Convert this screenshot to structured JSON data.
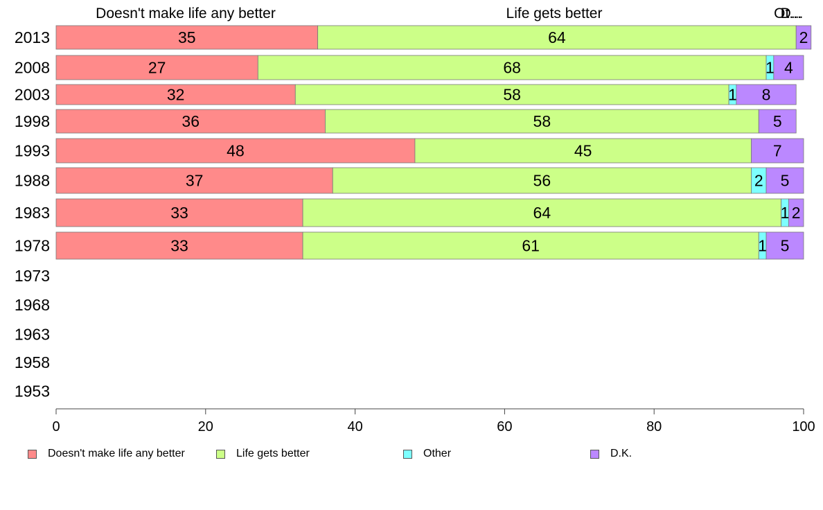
{
  "chart_data": {
    "type": "bar",
    "orientation": "horizontal",
    "stacked": true,
    "title": "",
    "xlabel": "",
    "ylabel": "",
    "xlim": [
      0,
      100
    ],
    "x_ticks": [
      "0",
      "20",
      "40",
      "60",
      "80",
      "100"
    ],
    "grid": false,
    "legend_placement": "bottom",
    "categories": [
      "2013",
      "2008",
      "2003",
      "1998",
      "1993",
      "1988",
      "1983",
      "1978",
      "1973",
      "1968",
      "1963",
      "1958",
      "1953"
    ],
    "series": [
      {
        "name": "Doesn't make life any better",
        "color": "#ff8a8a",
        "values": [
          35,
          27,
          32,
          36,
          48,
          37,
          33,
          33,
          null,
          null,
          null,
          null,
          null
        ]
      },
      {
        "name": "Life gets better",
        "color": "#ccff88",
        "values": [
          64,
          68,
          58,
          58,
          45,
          56,
          64,
          61,
          null,
          null,
          null,
          null,
          null
        ]
      },
      {
        "name": "Other",
        "color": "#7dffff",
        "values": [
          0,
          1,
          1,
          0,
          0,
          2,
          1,
          1,
          null,
          null,
          null,
          null,
          null
        ]
      },
      {
        "name": "D.K.",
        "color": "#bb88ff",
        "values": [
          2,
          4,
          8,
          5,
          7,
          5,
          2,
          5,
          null,
          null,
          null,
          null,
          null
        ]
      }
    ],
    "top_labels": [
      "Doesn't make life any better",
      "Life gets better",
      "Ot...",
      "D..."
    ]
  }
}
